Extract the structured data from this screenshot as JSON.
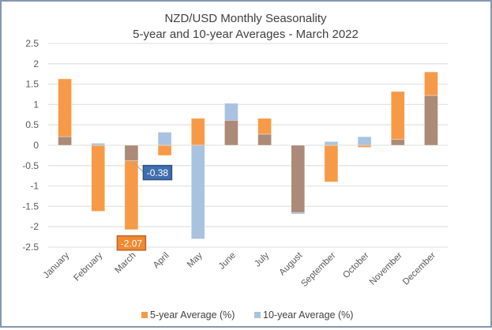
{
  "chart_data": {
    "type": "bar",
    "title": "NZD/USD Monthly Seasonality",
    "subtitle": "5-year and 10-year Averages - March 2022",
    "xlabel": "",
    "ylabel": "",
    "ylim": [
      -2.5,
      2.5
    ],
    "yticks": [
      2.5,
      2,
      1.5,
      1,
      0.5,
      0,
      -0.5,
      -1,
      -1.5,
      -2,
      -2.5
    ],
    "ytick_labels": [
      "2.5",
      "2",
      "1.5",
      "1",
      "0.5",
      "0",
      "-0.5",
      "-1",
      "-1.5",
      "-2",
      "-2.5"
    ],
    "grid": true,
    "overlap": true,
    "categories": [
      "January",
      "February",
      "March",
      "April",
      "May",
      "June",
      "July",
      "August",
      "September",
      "October",
      "November",
      "December"
    ],
    "series": [
      {
        "name": "5-year Average (%)",
        "color": "#F79A47",
        "values": [
          1.63,
          -1.62,
          -2.07,
          -0.25,
          0.66,
          0.61,
          0.66,
          -1.65,
          -0.9,
          -0.05,
          1.32,
          1.8
        ]
      },
      {
        "name": "10-year Average (%)",
        "color": "#A9C2E0",
        "values": [
          0.21,
          0.05,
          -0.38,
          0.32,
          -2.3,
          1.03,
          0.27,
          -1.69,
          0.09,
          0.21,
          0.14,
          1.22
        ]
      }
    ],
    "overlap_color": "#AC8A78",
    "annotations": [
      {
        "category": "March",
        "series": "5-year Average (%)",
        "text": "-2.07",
        "fill": "#F08A30",
        "border": "#C0612A"
      },
      {
        "category": "March",
        "series": "10-year Average (%)",
        "text": "-0.38",
        "fill": "#3F6FAF",
        "border": "#2F4F7F"
      }
    ],
    "legend": "bottom"
  }
}
